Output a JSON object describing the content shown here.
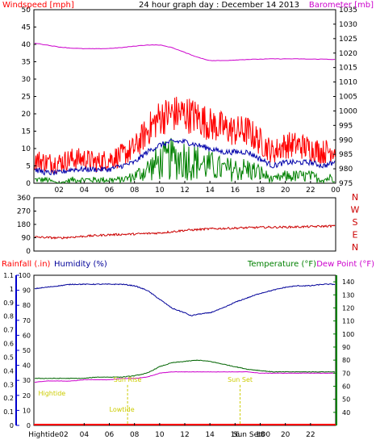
{
  "colors": {
    "windspeed": "#ff0000",
    "average_wind": "#0000aa",
    "lull": "#008000",
    "barometer": "#cc00cc",
    "direction": "#cc0000",
    "humidity": "#000099",
    "temperature": "#006400",
    "dewpoint": "#cc00cc",
    "rainfall": "#ff0000",
    "rain_axis": "#0000cc",
    "temp_axis": "#008000",
    "events": "#cccc00",
    "frame": "#000000"
  },
  "chart_data": [
    {
      "type": "line",
      "title": "24 hour graph day : December 14 2013",
      "ylabel": "Windspeed [mph]",
      "y2label": "Barometer [mb]",
      "ylim": [
        0,
        50
      ],
      "y2lim": [
        975,
        1035
      ],
      "yticks": [
        "0",
        "5",
        "10",
        "15",
        "20",
        "25",
        "30",
        "35",
        "40",
        "45",
        "50"
      ],
      "y2ticks": [
        "975",
        "980",
        "985",
        "990",
        "995",
        "1000",
        "1005",
        "1010",
        "1015",
        "1020",
        "1025",
        "1030",
        "1035"
      ],
      "xlim": [
        0,
        24
      ],
      "xticks": [
        "02",
        "04",
        "06",
        "08",
        "10",
        "12",
        "14",
        "16",
        "18",
        "20",
        "22",
        "00"
      ],
      "grid": false,
      "series": [
        {
          "key": "gust",
          "style": "noisy",
          "x": [
            0,
            1,
            2,
            3,
            4,
            5,
            6,
            7,
            8,
            9,
            10,
            11,
            12,
            13,
            14,
            15,
            16,
            17,
            18,
            19,
            20,
            21,
            22,
            23,
            24
          ],
          "values": [
            7,
            6,
            6,
            7,
            7,
            6,
            7,
            8,
            10,
            15,
            19,
            20,
            20,
            19,
            17,
            16,
            15,
            15,
            12,
            9,
            11,
            11,
            10,
            9,
            10
          ]
        },
        {
          "key": "average",
          "style": "noisy",
          "x": [
            0,
            1,
            2,
            3,
            4,
            5,
            6,
            7,
            8,
            9,
            10,
            11,
            12,
            13,
            14,
            15,
            16,
            17,
            18,
            19,
            20,
            21,
            22,
            23,
            24
          ],
          "values": [
            4,
            3,
            3,
            4,
            4,
            4,
            4,
            5,
            6,
            9,
            11,
            12,
            12,
            11,
            10,
            9,
            9,
            9,
            7,
            5,
            6,
            6,
            6,
            5,
            6
          ]
        },
        {
          "key": "lull",
          "style": "noisy",
          "x": [
            0,
            1,
            2,
            3,
            4,
            5,
            6,
            7,
            8,
            9,
            10,
            11,
            12,
            13,
            14,
            15,
            16,
            17,
            18,
            19,
            20,
            21,
            22,
            23,
            24
          ],
          "values": [
            1,
            1,
            0,
            1,
            1,
            1,
            1,
            1,
            2,
            4,
            6,
            7,
            7,
            6,
            5,
            4,
            4,
            4,
            3,
            1,
            2,
            2,
            2,
            1,
            2
          ]
        },
        {
          "key": "barometer",
          "axis": "right",
          "x": [
            0,
            1,
            2,
            3,
            4,
            5,
            6,
            7,
            8,
            9,
            10,
            11,
            12,
            13,
            14,
            15,
            16,
            17,
            18,
            19,
            20,
            21,
            22,
            23,
            24
          ],
          "values": [
            1023.5,
            1022.8,
            1022.1,
            1021.7,
            1021.5,
            1021.5,
            1021.6,
            1021.9,
            1022.4,
            1022.8,
            1022.8,
            1021.9,
            1020.2,
            1018.6,
            1017.4,
            1017.4,
            1017.6,
            1017.8,
            1017.9,
            1018.0,
            1018.0,
            1018.0,
            1017.9,
            1017.9,
            1017.8
          ]
        }
      ]
    },
    {
      "type": "line",
      "ylim": [
        0,
        360
      ],
      "yticks": [
        "0",
        "90",
        "180",
        "270",
        "360"
      ],
      "y2ticks": [
        "N",
        "E",
        "S",
        "W",
        "N"
      ],
      "xlim": [
        0,
        24
      ],
      "grid": false,
      "series": [
        {
          "key": "direction",
          "style": "noisy",
          "x": [
            0,
            2,
            4,
            6,
            8,
            10,
            12,
            14,
            16,
            18,
            20,
            22,
            24
          ],
          "values": [
            95,
            88,
            100,
            110,
            115,
            122,
            140,
            150,
            155,
            160,
            162,
            165,
            170
          ]
        }
      ]
    },
    {
      "type": "line",
      "ylabel": "Rainfall (.in)",
      "ylabel2": "Humidity (%)",
      "y2label": "Temperature (°F)",
      "y2label2": "Dew Point (°F)",
      "ylim": [
        0,
        1
      ],
      "hum_lim": [
        0,
        100
      ],
      "y2lim": [
        30,
        145
      ],
      "yticks": [
        "0",
        "0.1",
        "0.2",
        "0.3",
        "0.4",
        "0.5",
        "0.6",
        "0.7",
        "0.8",
        "0.9",
        "1",
        "1.1"
      ],
      "hticks": [
        "0",
        "10",
        "20",
        "30",
        "40",
        "50",
        "60",
        "70",
        "80",
        "90",
        "100"
      ],
      "y2ticks": [
        "40",
        "50",
        "60",
        "70",
        "80",
        "90",
        "100",
        "110",
        "120",
        "130",
        "140"
      ],
      "xlim": [
        0,
        24
      ],
      "xticks": [
        "02",
        "04",
        "06",
        "08",
        "10",
        "12",
        "14",
        "16",
        "18",
        "20",
        "22",
        "00"
      ],
      "grid": false,
      "series": [
        {
          "key": "humidity",
          "axis": "hum",
          "x": [
            0,
            1,
            2,
            3,
            4,
            5,
            6,
            7,
            8,
            9,
            10,
            11,
            12,
            12.5,
            13,
            14,
            15,
            16,
            17,
            18,
            19,
            20,
            21,
            22,
            23,
            24
          ],
          "values": [
            91,
            92,
            93,
            94,
            94,
            94,
            94,
            94,
            93,
            90,
            84,
            78,
            75,
            73,
            74,
            75,
            78,
            82,
            85,
            88,
            90,
            92,
            93,
            93,
            94,
            94
          ]
        },
        {
          "key": "temperature",
          "axis": "right",
          "x": [
            0,
            1,
            2,
            3,
            4,
            5,
            6,
            7,
            8,
            9,
            10,
            11,
            12,
            13,
            14,
            15,
            16,
            17,
            18,
            19,
            20,
            21,
            22,
            23,
            24
          ],
          "values": [
            66,
            66,
            66,
            66,
            66,
            67,
            67,
            67,
            68,
            70,
            75,
            78,
            79,
            80,
            79,
            77,
            75,
            73,
            72,
            71,
            71,
            71,
            71,
            71,
            71
          ]
        },
        {
          "key": "dewpoint",
          "axis": "right",
          "x": [
            0,
            1,
            2,
            3,
            4,
            5,
            6,
            7,
            8,
            9,
            10,
            11,
            12,
            13,
            14,
            15,
            16,
            17,
            18,
            19,
            20,
            21,
            22,
            23,
            24
          ],
          "values": [
            63,
            64,
            64,
            64,
            65,
            65,
            65,
            66,
            66,
            67,
            70,
            71,
            71,
            71,
            71,
            71,
            71,
            71,
            70,
            70,
            70,
            70,
            70,
            70,
            70
          ]
        },
        {
          "key": "rainfall",
          "x": [
            0,
            24
          ],
          "values": [
            0,
            0
          ]
        }
      ],
      "annotations": [
        {
          "label": "Hightide",
          "x": 0.35,
          "level": 0.22,
          "marker": false
        },
        {
          "label": "Lowtide",
          "x": 6.0,
          "level": 0.1,
          "marker": false
        },
        {
          "label": "Sun Rise",
          "x": 7.45,
          "level": 0.32,
          "marker": true
        },
        {
          "label": "Sun Set",
          "x": 16.4,
          "level": 0.32,
          "marker": true
        }
      ],
      "bottom_labels": [
        "Hightide02",
        "Sun Set00"
      ]
    }
  ]
}
